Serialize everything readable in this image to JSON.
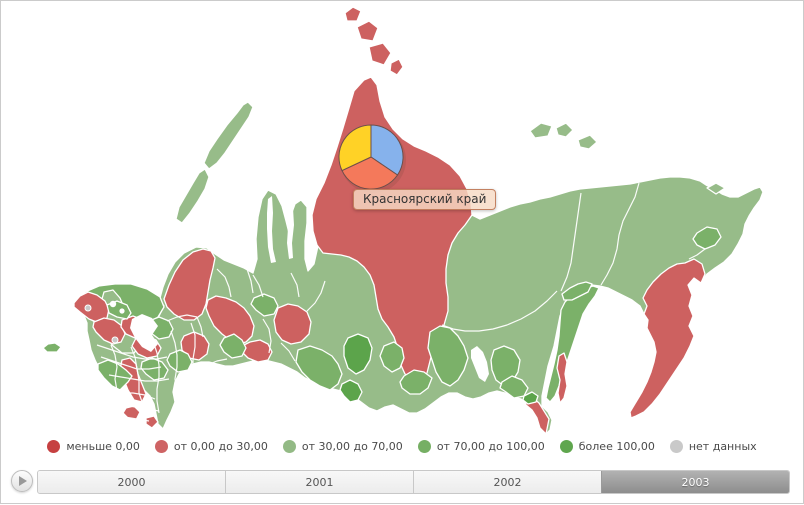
{
  "colors": {
    "region_red": "#CD6160",
    "region_dark_red": "#C64041",
    "green_light": "#97BC89",
    "green_mid": "#7BB169",
    "green_dark": "#5CA44B",
    "no_data": "#C9C9C9",
    "pie_outline": "#6D4F4B"
  },
  "map": {
    "tooltip": {
      "region_label": "Красноярский край"
    },
    "pie": {
      "slices": [
        {
          "name": "blue",
          "color": "#86B2EC",
          "fraction": 0.345
        },
        {
          "name": "salmon",
          "color": "#F4795B",
          "fraction": 0.335
        },
        {
          "name": "yellow",
          "color": "#FFD226",
          "fraction": 0.32
        }
      ]
    }
  },
  "legend": {
    "items": [
      {
        "label": "меньше 0,00",
        "color": "#C64041"
      },
      {
        "label": "от 0,00 до 30,00",
        "color": "#CE6364"
      },
      {
        "label": "от 30,00 до 70,00",
        "color": "#93BA85"
      },
      {
        "label": "от 70,00 до 100,00",
        "color": "#76AF64"
      },
      {
        "label": "более 100,00",
        "color": "#5FA64E"
      },
      {
        "label": "нет данных",
        "color": "#C9C9C9"
      }
    ]
  },
  "timeline": {
    "years": [
      "2000",
      "2001",
      "2002",
      "2003"
    ],
    "selected_year": "2003"
  }
}
